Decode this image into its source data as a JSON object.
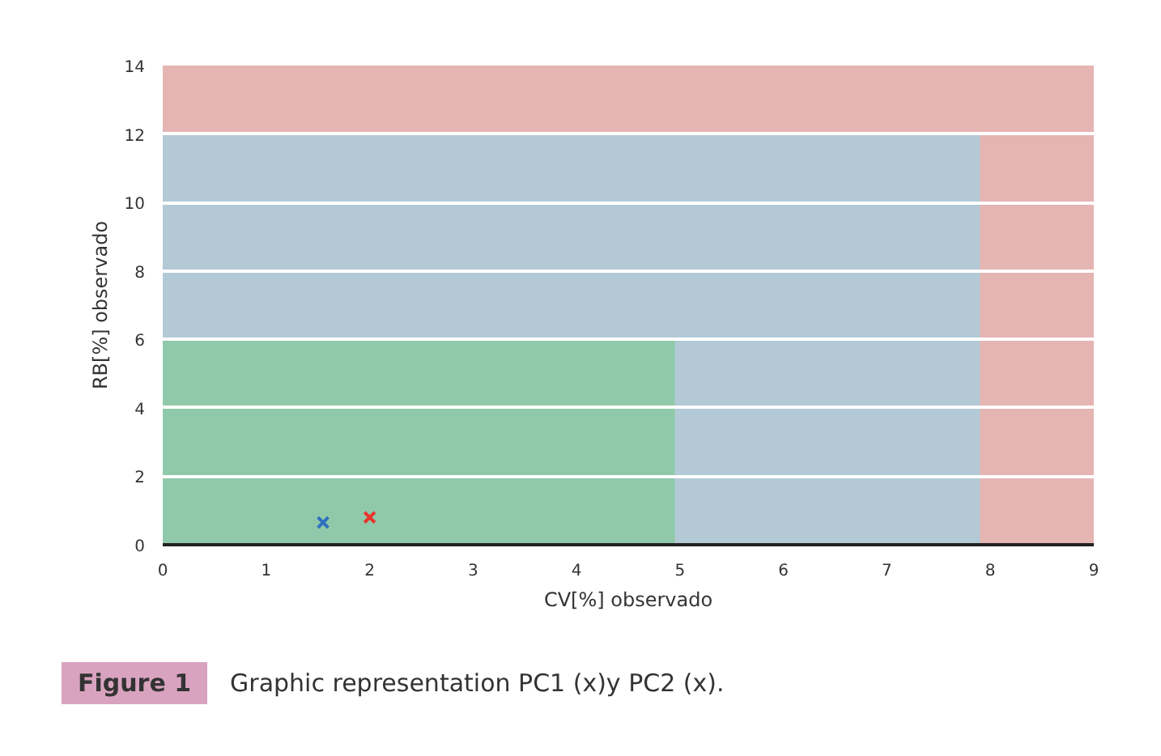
{
  "chart_data": {
    "type": "scatter",
    "xlabel": "CV[%] observado",
    "ylabel": "RB[%] observado",
    "xlim": [
      0,
      9
    ],
    "ylim": [
      0,
      14
    ],
    "xticks": [
      0,
      1,
      2,
      3,
      4,
      5,
      6,
      7,
      8,
      9
    ],
    "yticks": [
      0,
      2,
      4,
      6,
      8,
      10,
      12,
      14
    ],
    "grid": "y",
    "series": [
      {
        "type": "area",
        "color": "#e5b5b3",
        "x": [
          0,
          9
        ],
        "values": [
          14,
          14
        ]
      },
      {
        "type": "area",
        "color": "#b3cad6",
        "x": [
          0,
          7.9
        ],
        "values": [
          12,
          12
        ]
      },
      {
        "type": "area",
        "color": "#8fc9a9",
        "x": [
          0,
          4.95
        ],
        "values": [
          6,
          6
        ]
      },
      {
        "color": "#e8332b",
        "x": [
          2.0
        ],
        "values": [
          0.8
        ],
        "marker": "cross"
      },
      {
        "color": "#2f6fc0",
        "x": [
          1.55
        ],
        "values": [
          0.65
        ],
        "marker": "cross"
      }
    ],
    "annotations": [
      "Figure 1",
      "Graphic representation PC1 (x)y PC2 (x)."
    ]
  }
}
